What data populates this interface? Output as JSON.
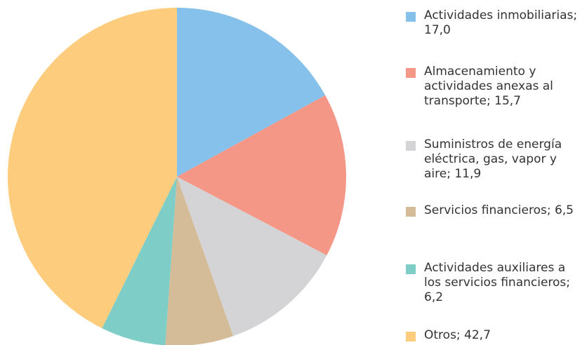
{
  "chart_data": {
    "type": "pie",
    "categories": [
      "Actividades inmobiliarias; 17,0",
      "Almacenamiento y actividades anexas al transporte; 15,7",
      "Suministros de energía eléctrica, gas, vapor y aire; 11,9",
      "Servicios financieros; 6,5",
      "Actividades auxiliares a los servicios financieros; 6,2",
      "Otros; 42,7"
    ],
    "values": [
      17.0,
      15.7,
      11.9,
      6.5,
      6.2,
      42.7
    ],
    "colors": [
      "#85c1ea",
      "#f59787",
      "#d4d4d6",
      "#d4bc99",
      "#7ecdc7",
      "#fdcc7d"
    ]
  }
}
